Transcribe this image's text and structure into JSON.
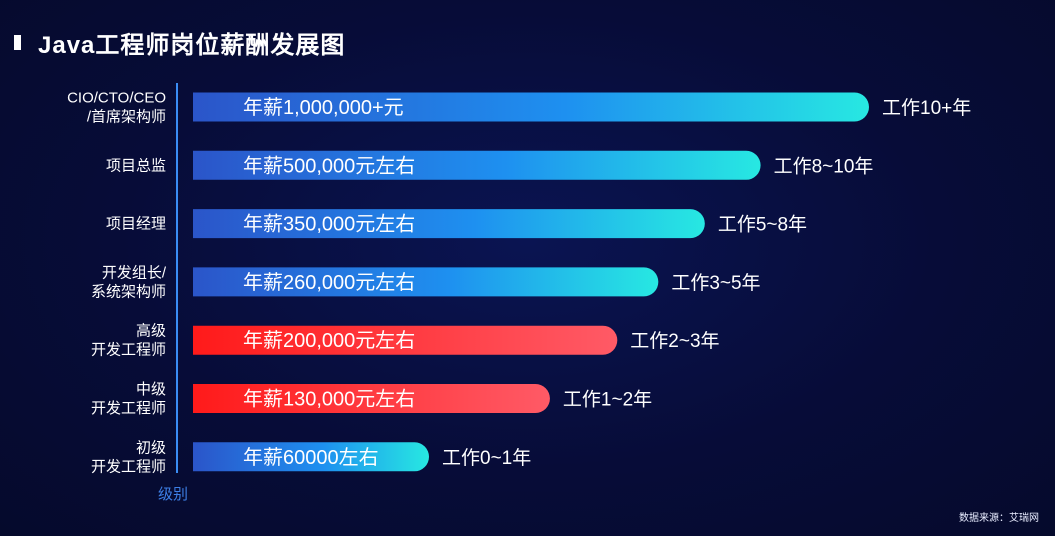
{
  "page": {
    "title": "Java工程师岗位薪酬发展图",
    "source": "数据来源：艾瑞网"
  },
  "chart_data": {
    "type": "bar",
    "orientation": "horizontal",
    "title": "Java工程师岗位薪酬发展图",
    "ylabel": "级别",
    "unit": "元/年",
    "categories": [
      [
        "CIO/CTO/CEO",
        "/首席架构师"
      ],
      [
        "项目总监"
      ],
      [
        "项目经理"
      ],
      [
        "开发组长/",
        "系统架构师"
      ],
      [
        "高级",
        "开发工程师"
      ],
      [
        "中级",
        "开发工程师"
      ],
      [
        "初级",
        "开发工程师"
      ]
    ],
    "values": [
      1000000,
      500000,
      350000,
      260000,
      200000,
      130000,
      60000
    ],
    "bar_labels": [
      "年薪1,000,000+元",
      "年薪500,000元左右",
      "年薪350,000元左右",
      "年薪260,000元左右",
      "年薪200,000元左右",
      "年薪130,000元左右",
      "年薪60000左右"
    ],
    "experience": [
      "工作10+年",
      "工作8~10年",
      "工作5~8年",
      "工作3~5年",
      "工作2~3年",
      "工作1~2年",
      "工作0~1年"
    ],
    "highlight": [
      false,
      false,
      false,
      false,
      true,
      true,
      false
    ],
    "colors": {
      "normal_start": "#2b55c9",
      "normal_mid": "#1e90f0",
      "normal_end": "#27e8e2",
      "highlight_start": "#ff1a1a",
      "highlight_end": "#ff5a66",
      "axis": "#3a8df5",
      "axis_label": "#3d7fe6"
    },
    "grid": false,
    "legend": "none"
  }
}
